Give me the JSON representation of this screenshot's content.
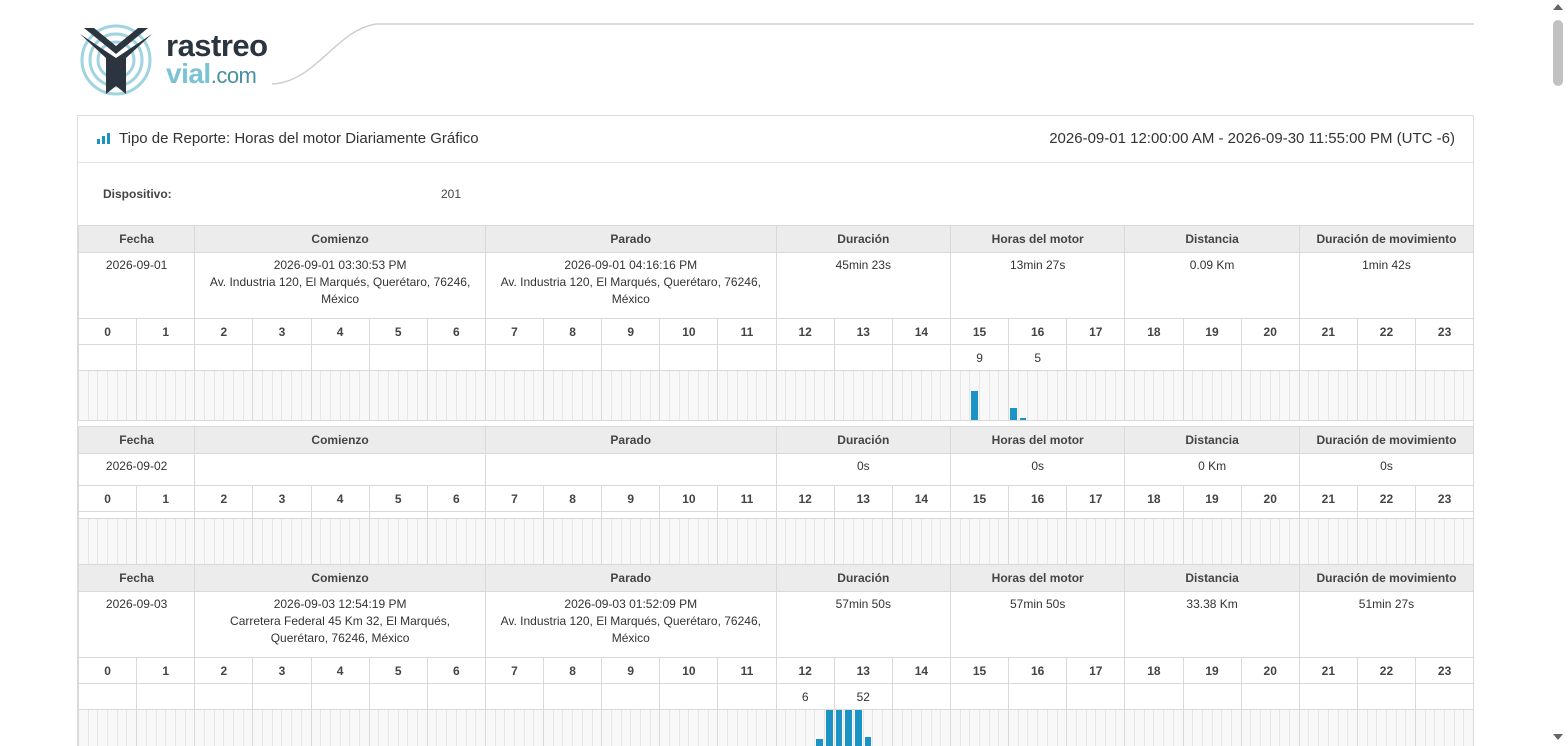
{
  "logo": {
    "line1": "rastreo",
    "line2": "vial",
    "line2_suffix": ".com"
  },
  "report": {
    "title": "Tipo de Reporte: Horas del motor Diariamente Gráfico",
    "range": "2026-09-01 12:00:00 AM - 2026-09-30 11:55:00 PM (UTC -6)",
    "device_label": "Dispositivo:",
    "device_value": "201"
  },
  "columns": [
    "Fecha",
    "Comienzo",
    "Parado",
    "Duración",
    "Horas del motor",
    "Distancia",
    "Duración de movimiento"
  ],
  "hours": [
    "0",
    "1",
    "2",
    "3",
    "4",
    "5",
    "6",
    "7",
    "8",
    "9",
    "10",
    "11",
    "12",
    "13",
    "14",
    "15",
    "16",
    "17",
    "18",
    "19",
    "20",
    "21",
    "22",
    "23"
  ],
  "accent_color": "#1b93c4",
  "days": [
    {
      "fecha": "2026-09-01",
      "comienzo_time": "2026-09-01 03:30:53 PM",
      "comienzo_addr": "Av. Industria 120, El Marqués, Querétaro, 76246, México",
      "parado_time": "2026-09-01 04:16:16 PM",
      "parado_addr": "Av. Industria 120, El Marqués, Querétaro, 76246, México",
      "duracion": "45min 23s",
      "horas_motor": "13min 27s",
      "distancia": "0.09 Km",
      "duracion_mov": "1min 42s",
      "hour_values": {
        "15": "9",
        "16": "5"
      },
      "bars": {
        "15": [
          0,
          0,
          0.6,
          0,
          0,
          0
        ],
        "16": [
          0.25,
          0.05,
          0,
          0,
          0,
          0
        ]
      }
    },
    {
      "fecha": "2026-09-02",
      "comienzo_time": "",
      "comienzo_addr": "",
      "parado_time": "",
      "parado_addr": "",
      "duracion": "0s",
      "horas_motor": "0s",
      "distancia": "0 Km",
      "duracion_mov": "0s",
      "hour_values": {},
      "bars": {}
    },
    {
      "fecha": "2026-09-03",
      "comienzo_time": "2026-09-03 12:54:19 PM",
      "comienzo_addr": "Carretera Federal 45 Km 32, El Marqués, Querétaro, 76246, México",
      "parado_time": "2026-09-03 01:52:09 PM",
      "parado_addr": "Av. Industria 120, El Marqués, Querétaro, 76246, México",
      "duracion": "57min 50s",
      "horas_motor": "57min 50s",
      "distancia": "33.38 Km",
      "duracion_mov": "51min 27s",
      "hour_values": {
        "12": "6",
        "13": "52"
      },
      "bars": {
        "12": [
          0,
          0,
          0,
          0,
          0.4,
          1
        ],
        "13": [
          1,
          1,
          1,
          0.45,
          0,
          0
        ]
      }
    }
  ]
}
